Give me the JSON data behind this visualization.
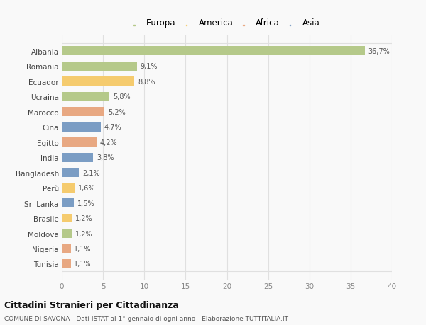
{
  "countries": [
    "Albania",
    "Romania",
    "Ecuador",
    "Ucraina",
    "Marocco",
    "Cina",
    "Egitto",
    "India",
    "Bangladesh",
    "Perù",
    "Sri Lanka",
    "Brasile",
    "Moldova",
    "Nigeria",
    "Tunisia"
  ],
  "values": [
    36.7,
    9.1,
    8.8,
    5.8,
    5.2,
    4.7,
    4.2,
    3.8,
    2.1,
    1.6,
    1.5,
    1.2,
    1.2,
    1.1,
    1.1
  ],
  "labels": [
    "36,7%",
    "9,1%",
    "8,8%",
    "5,8%",
    "5,2%",
    "4,7%",
    "4,2%",
    "3,8%",
    "2,1%",
    "1,6%",
    "1,5%",
    "1,2%",
    "1,2%",
    "1,1%",
    "1,1%"
  ],
  "colors": [
    "#b5c98a",
    "#b5c98a",
    "#f5cb6e",
    "#b5c98a",
    "#e8a882",
    "#7b9dc4",
    "#e8a882",
    "#7b9dc4",
    "#7b9dc4",
    "#f5cb6e",
    "#7b9dc4",
    "#f5cb6e",
    "#b5c98a",
    "#e8a882",
    "#e8a882"
  ],
  "continent_colors": {
    "Europa": "#b5c98a",
    "America": "#f5cb6e",
    "Africa": "#e8a882",
    "Asia": "#7b9dc4"
  },
  "xlim": [
    0,
    40
  ],
  "xticks": [
    0,
    5,
    10,
    15,
    20,
    25,
    30,
    35,
    40
  ],
  "title": "Cittadini Stranieri per Cittadinanza",
  "subtitle": "COMUNE DI SAVONA - Dati ISTAT al 1° gennaio di ogni anno - Elaborazione TUTTITALIA.IT",
  "background_color": "#f9f9f9",
  "grid_color": "#e0e0e0"
}
